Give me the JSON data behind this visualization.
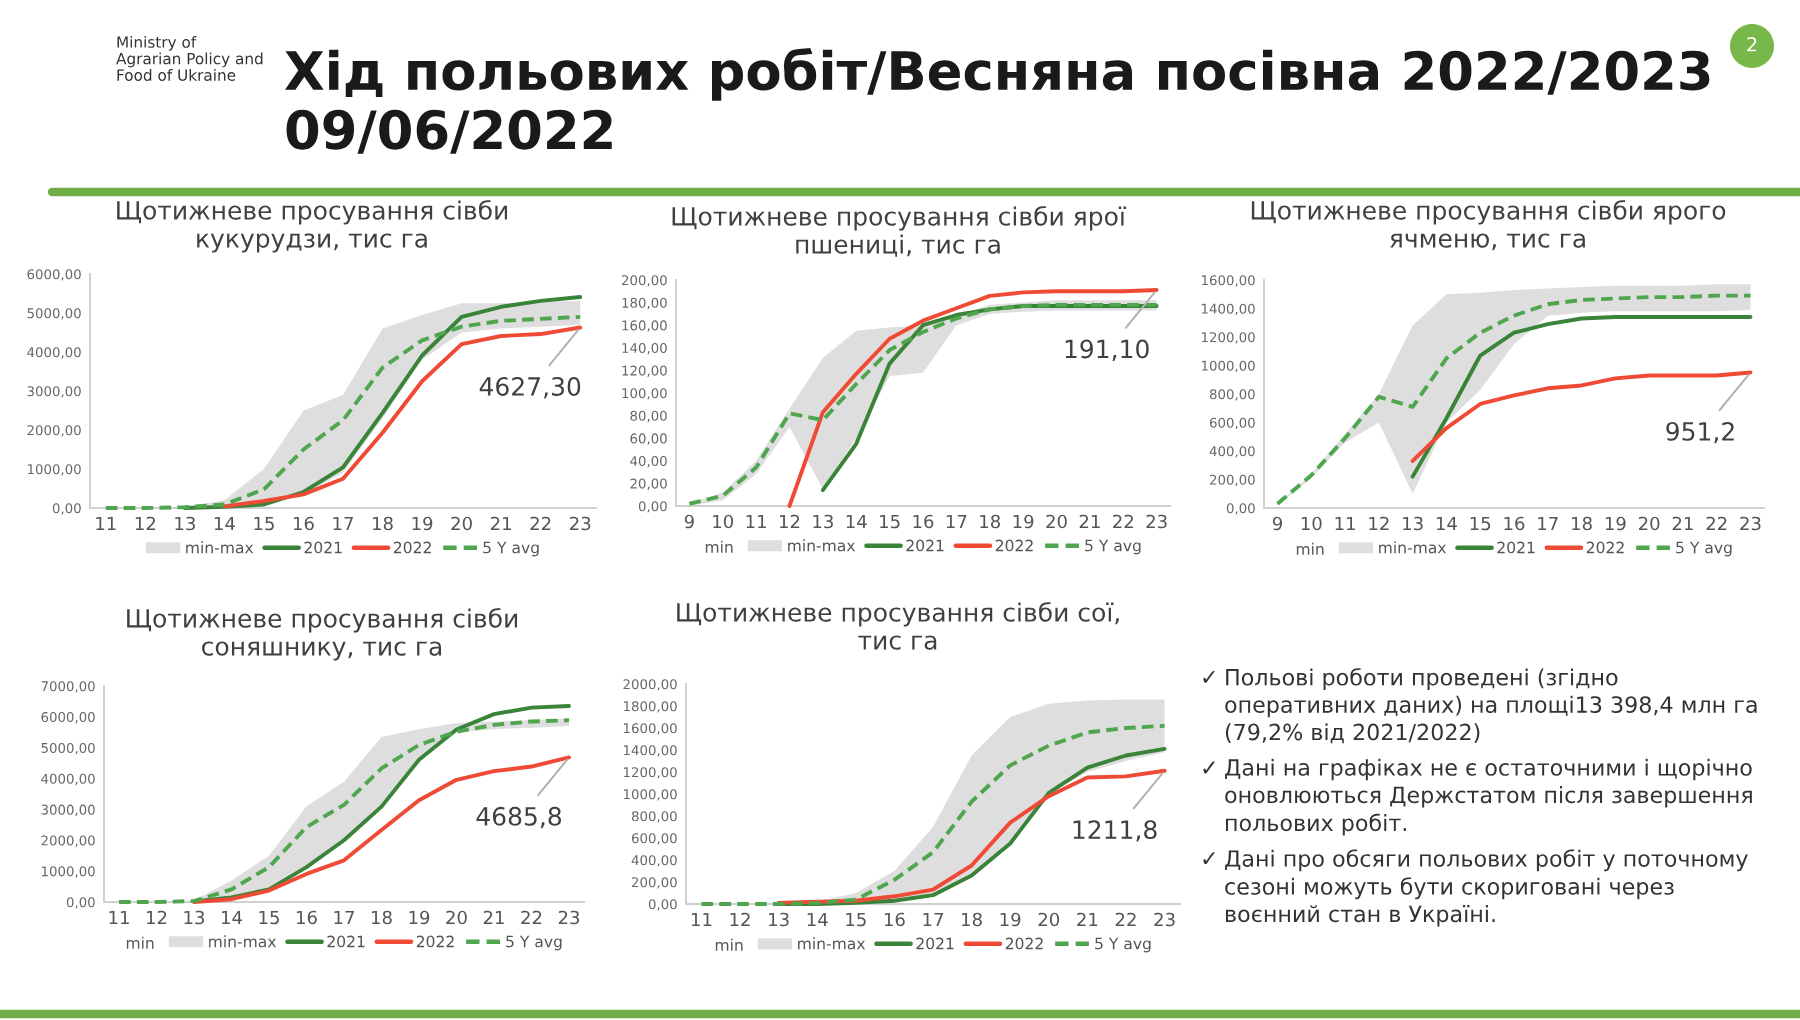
{
  "chart_data": [
    {
      "type": "other",
      "title": "Хід польових робіт/Весняна посівна 2022/2023\n09/06/2022",
      "annotations": [
        "Ministry of\nAgrarian Policy and\nFood of Ukraine",
        "2"
      ]
    },
    {
      "type": "line",
      "title": "Щотижневе просування сівби\nкукурудзи, тис га",
      "categories": [
        "11",
        "12",
        "13",
        "14",
        "15",
        "16",
        "17",
        "18",
        "19",
        "20",
        "21",
        "22",
        "23"
      ],
      "legend": "bottom",
      "ylim": [
        0,
        6000
      ],
      "yticks": [
        {
          "value": 0,
          "label": "0,00"
        },
        {
          "value": 1000,
          "label": "1000,00"
        },
        {
          "value": 2000,
          "label": "2000,00"
        },
        {
          "value": 3000,
          "label": "3000,00"
        },
        {
          "value": 4000,
          "label": "4000,00"
        },
        {
          "value": 5000,
          "label": "5000,00"
        },
        {
          "value": 6000,
          "label": "6000,00"
        }
      ],
      "series": [
        {
          "name": "min-max",
          "type": "line",
          "color": "#dedede",
          "values": [
            null,
            null,
            null,
            null,
            null,
            null,
            null,
            null,
            null,
            null,
            null,
            null,
            null
          ],
          "lower": [
            0,
            0,
            0,
            0,
            50,
            350,
            900,
            2300,
            3800,
            4500,
            4600,
            4650,
            4700
          ],
          "upper": [
            0,
            0,
            30,
            200,
            1000,
            2500,
            2900,
            4600,
            4950,
            5250,
            5250,
            5300,
            5300
          ]
        },
        {
          "name": "2021",
          "type": "line",
          "color": "#3a843a",
          "values": [
            null,
            null,
            0,
            30,
            90,
            410,
            1040,
            2440,
            3910,
            4900,
            5160,
            5310,
            5410
          ]
        },
        {
          "name": "2022",
          "type": "line",
          "color": "#ee4a35",
          "values": [
            null,
            null,
            null,
            40,
            180,
            350,
            750,
            1930,
            3250,
            4200,
            4410,
            4460,
            4627.3
          ],
          "value_labels": [
            null,
            null,
            null,
            null,
            null,
            null,
            null,
            null,
            null,
            null,
            null,
            null,
            "4627,30"
          ]
        },
        {
          "name": "5 Y avg",
          "type": "line",
          "line_style": "dashed",
          "color": "#4fa64f",
          "values": [
            0,
            0,
            20,
            90,
            480,
            1500,
            2250,
            3600,
            4300,
            4650,
            4800,
            4850,
            4900
          ]
        }
      ]
    },
    {
      "type": "line",
      "title": "Щотижневе просування сівби ярої\nпшениці, тис га",
      "categories": [
        "9",
        "10",
        "11",
        "12",
        "13",
        "14",
        "15",
        "16",
        "17",
        "18",
        "19",
        "20",
        "21",
        "22",
        "23"
      ],
      "legend": "bottom",
      "annotations": [
        "min"
      ],
      "ylim": [
        0,
        200
      ],
      "yticks": [
        {
          "value": 0,
          "label": "0,00"
        },
        {
          "value": 20,
          "label": "20,00"
        },
        {
          "value": 40,
          "label": "40,00"
        },
        {
          "value": 60,
          "label": "60,00"
        },
        {
          "value": 80,
          "label": "80,00"
        },
        {
          "value": 100,
          "label": "100,00"
        },
        {
          "value": 120,
          "label": "120,00"
        },
        {
          "value": 140,
          "label": "140,00"
        },
        {
          "value": 160,
          "label": "160,00"
        },
        {
          "value": 180,
          "label": "180,00"
        },
        {
          "value": 200,
          "label": "200,00"
        }
      ],
      "series": [
        {
          "name": "min-max",
          "type": "line",
          "color": "#dedede",
          "values": [
            null,
            null,
            null,
            null,
            null,
            null,
            null,
            null,
            null,
            null,
            null,
            null,
            null,
            null,
            null
          ],
          "lower": [
            0,
            5,
            28,
            70,
            15,
            60,
            115,
            118,
            160,
            170,
            172,
            173,
            173,
            173,
            173
          ],
          "upper": [
            2,
            12,
            40,
            86,
            131,
            155,
            158,
            160,
            168,
            178,
            180,
            182,
            182,
            182,
            182
          ]
        },
        {
          "name": "2021",
          "type": "line",
          "color": "#3a843a",
          "values": [
            null,
            null,
            null,
            null,
            14,
            55,
            126,
            160,
            169,
            174,
            177,
            177,
            177,
            177,
            177
          ]
        },
        {
          "name": "2022",
          "type": "line",
          "color": "#ee4a35",
          "values": [
            null,
            null,
            null,
            0,
            83,
            117,
            148,
            164,
            175,
            186,
            189,
            190,
            190,
            190,
            191.1
          ],
          "value_labels": [
            null,
            null,
            null,
            null,
            null,
            null,
            null,
            null,
            null,
            null,
            null,
            null,
            null,
            null,
            "191,10"
          ]
        },
        {
          "name": "5 Y avg",
          "type": "line",
          "line_style": "dashed",
          "color": "#4fa64f",
          "values": [
            2,
            9,
            34,
            82,
            76,
            108,
            138,
            154,
            166,
            174,
            177,
            178,
            178,
            178,
            178
          ]
        }
      ]
    },
    {
      "type": "line",
      "title": "Щотижневе просування сівби ярого\nячменю, тис га",
      "categories": [
        "9",
        "10",
        "11",
        "12",
        "13",
        "14",
        "15",
        "16",
        "17",
        "18",
        "19",
        "20",
        "21",
        "22",
        "23"
      ],
      "legend": "bottom",
      "annotations": [
        "min"
      ],
      "ylim": [
        0,
        1600
      ],
      "yticks": [
        {
          "value": 0,
          "label": "0,00"
        },
        {
          "value": 200,
          "label": "200,00"
        },
        {
          "value": 400,
          "label": "400,00"
        },
        {
          "value": 600,
          "label": "600,00"
        },
        {
          "value": 800,
          "label": "800,00"
        },
        {
          "value": 1000,
          "label": "1000,00"
        },
        {
          "value": 1200,
          "label": "1200,00"
        },
        {
          "value": 1400,
          "label": "1400,00"
        },
        {
          "value": 1600,
          "label": "1600,00"
        }
      ],
      "series": [
        {
          "name": "min-max",
          "type": "line",
          "color": "#dedede",
          "values": [
            null,
            null,
            null,
            null,
            null,
            null,
            null,
            null,
            null,
            null,
            null,
            null,
            null,
            null,
            null
          ],
          "lower": [
            20,
            210,
            460,
            600,
            100,
            600,
            830,
            1150,
            1350,
            1370,
            1380,
            1380,
            1380,
            1380,
            1390
          ],
          "upper": [
            30,
            240,
            520,
            800,
            1280,
            1500,
            1510,
            1530,
            1540,
            1550,
            1560,
            1560,
            1560,
            1570,
            1570
          ]
        },
        {
          "name": "2021",
          "type": "line",
          "color": "#3a843a",
          "values": [
            null,
            null,
            null,
            null,
            220,
            630,
            1070,
            1230,
            1290,
            1330,
            1340,
            1340,
            1340,
            1340,
            1340
          ]
        },
        {
          "name": "2022",
          "type": "line",
          "color": "#ee4a35",
          "values": [
            null,
            null,
            null,
            null,
            330,
            560,
            730,
            790,
            840,
            860,
            910,
            930,
            930,
            930,
            951.2
          ],
          "value_labels": [
            null,
            null,
            null,
            null,
            null,
            null,
            null,
            null,
            null,
            null,
            null,
            null,
            null,
            null,
            "951,2"
          ]
        },
        {
          "name": "5 Y avg",
          "type": "line",
          "line_style": "dashed",
          "color": "#4fa64f",
          "values": [
            30,
            230,
            490,
            780,
            710,
            1050,
            1230,
            1350,
            1430,
            1460,
            1470,
            1480,
            1480,
            1490,
            1490
          ]
        }
      ]
    },
    {
      "type": "line",
      "title": "Щотижневе просування сівби\nсоняшнику, тис га",
      "categories": [
        "11",
        "12",
        "13",
        "14",
        "15",
        "16",
        "17",
        "18",
        "19",
        "20",
        "21",
        "22",
        "23"
      ],
      "legend": "bottom",
      "annotations": [
        "min"
      ],
      "ylim": [
        0,
        7000
      ],
      "yticks": [
        {
          "value": 0,
          "label": "0,00"
        },
        {
          "value": 1000,
          "label": "1000,00"
        },
        {
          "value": 2000,
          "label": "2000,00"
        },
        {
          "value": 3000,
          "label": "3000,00"
        },
        {
          "value": 4000,
          "label": "4000,00"
        },
        {
          "value": 5000,
          "label": "5000,00"
        },
        {
          "value": 6000,
          "label": "6000,00"
        },
        {
          "value": 7000,
          "label": "7000,00"
        }
      ],
      "series": [
        {
          "name": "min-max",
          "type": "line",
          "color": "#dedede",
          "values": [
            null,
            null,
            null,
            null,
            null,
            null,
            null,
            null,
            null,
            null,
            null,
            null,
            null
          ],
          "lower": [
            0,
            0,
            0,
            100,
            400,
            1100,
            2000,
            3100,
            4600,
            5500,
            5600,
            5650,
            5700
          ],
          "upper": [
            0,
            0,
            50,
            700,
            1500,
            3100,
            3900,
            5350,
            5600,
            5800,
            5850,
            5900,
            5950
          ]
        },
        {
          "name": "2021",
          "type": "line",
          "color": "#3a843a",
          "values": [
            null,
            null,
            20,
            150,
            410,
            1130,
            2000,
            3090,
            4610,
            5590,
            6090,
            6300,
            6350
          ]
        },
        {
          "name": "2022",
          "type": "line",
          "color": "#ee4a35",
          "values": [
            null,
            null,
            0,
            90,
            370,
            910,
            1350,
            2330,
            3300,
            3960,
            4240,
            4390,
            4685.8
          ],
          "value_labels": [
            null,
            null,
            null,
            null,
            null,
            null,
            null,
            null,
            null,
            null,
            null,
            null,
            "4685,8"
          ]
        },
        {
          "name": "5 Y avg",
          "type": "line",
          "line_style": "dashed",
          "color": "#4fa64f",
          "values": [
            0,
            0,
            30,
            410,
            1130,
            2430,
            3150,
            4330,
            5090,
            5520,
            5740,
            5850,
            5890
          ]
        }
      ]
    },
    {
      "type": "line",
      "title": "Щотижневе просування сівби сої,\nтис га",
      "categories": [
        "11",
        "12",
        "13",
        "14",
        "15",
        "16",
        "17",
        "18",
        "19",
        "20",
        "21",
        "22",
        "23"
      ],
      "legend": "bottom",
      "annotations": [
        "min"
      ],
      "ylim": [
        0,
        2000
      ],
      "yticks": [
        {
          "value": 0,
          "label": "0,00"
        },
        {
          "value": 200,
          "label": "200,00"
        },
        {
          "value": 400,
          "label": "400,00"
        },
        {
          "value": 600,
          "label": "600,00"
        },
        {
          "value": 800,
          "label": "800,00"
        },
        {
          "value": 1000,
          "label": "1000,00"
        },
        {
          "value": 1200,
          "label": "1200,00"
        },
        {
          "value": 1400,
          "label": "1400,00"
        },
        {
          "value": 1600,
          "label": "1600,00"
        },
        {
          "value": 1800,
          "label": "1800,00"
        },
        {
          "value": 2000,
          "label": "2000,00"
        }
      ],
      "series": [
        {
          "name": "min-max",
          "type": "line",
          "color": "#dedede",
          "values": [
            null,
            null,
            null,
            null,
            null,
            null,
            null,
            null,
            null,
            null,
            null,
            null,
            null
          ],
          "lower": [
            0,
            0,
            0,
            0,
            0,
            20,
            70,
            250,
            540,
            1000,
            1200,
            1300,
            1380
          ],
          "upper": [
            0,
            0,
            0,
            20,
            100,
            300,
            700,
            1350,
            1700,
            1820,
            1850,
            1860,
            1860
          ]
        },
        {
          "name": "2021",
          "type": "line",
          "color": "#3a843a",
          "values": [
            null,
            null,
            0,
            0,
            10,
            30,
            80,
            260,
            550,
            1010,
            1240,
            1350,
            1410
          ]
        },
        {
          "name": "2022",
          "type": "line",
          "color": "#ee4a35",
          "values": [
            null,
            null,
            10,
            20,
            30,
            70,
            130,
            350,
            740,
            980,
            1150,
            1160,
            1211.8
          ],
          "value_labels": [
            null,
            null,
            null,
            null,
            null,
            null,
            null,
            null,
            null,
            null,
            null,
            null,
            "1211,8"
          ]
        },
        {
          "name": "5 Y avg",
          "type": "line",
          "line_style": "dashed",
          "color": "#4fa64f",
          "values": [
            0,
            0,
            0,
            10,
            40,
            220,
            470,
            930,
            1260,
            1440,
            1560,
            1600,
            1620
          ]
        }
      ]
    },
    {
      "type": "other",
      "annotations": [
        "✓ Польові роботи проведені (згідно\nоперативних даних) на площі13 398,4 млн га\n(79,2% від 2021/2022)",
        "✓ Дані на графіках не є остаточними і щорічно\nоновлюються Держстатом після завершення\nпольових робіт.",
        "✓ Дані про обсяги польових робіт у поточному\nсезоні можуть бути скориговані через\nвоєнний стан в Україні."
      ]
    }
  ]
}
